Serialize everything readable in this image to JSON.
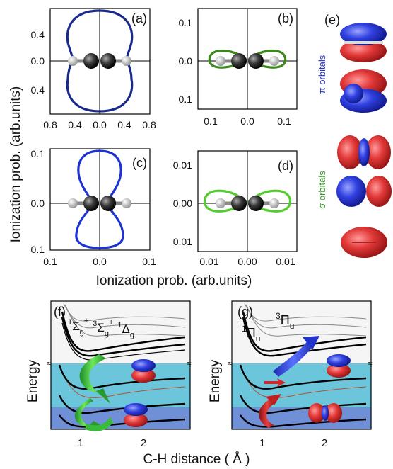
{
  "figure": {
    "panel_labels": [
      "(a)",
      "(b)",
      "(c)",
      "(d)",
      "(e)",
      "(f)",
      "(g)"
    ],
    "y_axis_label_top": "Ionization prob. (arb.units)",
    "x_axis_label_polar": "Ionization prob. (arb.units)",
    "panel_a": {
      "y_ticks": [
        "0.4",
        "0.0",
        "0.4"
      ],
      "x_ticks": [
        "0.8",
        "0.4",
        "0.0",
        "0.4",
        "0.8"
      ],
      "curve_color": "#1a2a8c"
    },
    "panel_b": {
      "y_ticks": [
        "0.1",
        "0.0",
        "0.1"
      ],
      "x_ticks": [
        "0.1",
        "0.0",
        "0.1"
      ],
      "curve_color": "#3a8a1a"
    },
    "panel_c": {
      "y_ticks": [
        "0.1",
        "0.0",
        "0.1"
      ],
      "x_ticks": [
        "0.1",
        "0.0",
        "0.1"
      ],
      "curve_color": "#1e33d6"
    },
    "panel_d": {
      "y_ticks": [
        "0.01",
        "0.00",
        "0.01"
      ],
      "x_ticks": [
        "0.01",
        "0.00",
        "0.01"
      ],
      "curve_color": "#52cc2e"
    },
    "panel_e": {
      "pi_label": "π orbitals",
      "sigma_label": "σ orbitals",
      "pi_color": "#2233cc",
      "sigma_color": "#3a9a2a"
    },
    "panel_f": {
      "state_label_main": "Σ",
      "state_label_full": "1Σg+ 3Σg+ 1Δg",
      "y_label": "Energy"
    },
    "panel_g": {
      "state_label_1": "Π",
      "state_label_3": "Π",
      "y_label": "Energy"
    },
    "bottom_axis": {
      "x_label": "C-H distance ( Å )",
      "ticks": [
        "1",
        "2",
        "1",
        "2"
      ]
    },
    "colors": {
      "cyan_band": "#6cc6db",
      "blue_band": "#6f8fd6",
      "red_orbital": "#e03030",
      "blue_orbital": "#2c3ee0"
    }
  }
}
